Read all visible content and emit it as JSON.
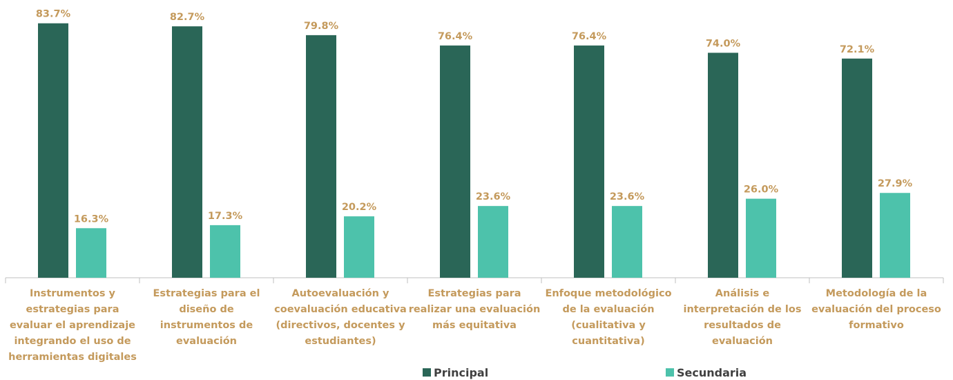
{
  "chart_data": {
    "type": "bar",
    "categories": [
      "Instrumentos y estrategias para evaluar el aprendizaje integrando el uso de herramientas digitales",
      "Estrategias para el diseño de instrumentos de evaluación",
      "Autoevaluación y coevaluación educativa (directivos, docentes y estudiantes)",
      "Estrategias para realizar una evaluación más equitativa",
      "Enfoque metodológico de la evaluación (cualitativa y cuantitativa)",
      "Análisis e interpretación de los resultados de evaluación",
      "Metodología de la evaluación del proceso formativo"
    ],
    "series": [
      {
        "name": "Principal",
        "color": "#2a6657",
        "values": [
          83.7,
          82.7,
          79.8,
          76.4,
          76.4,
          74.0,
          72.1
        ],
        "value_labels": [
          "83.7%",
          "82.7%",
          "79.8%",
          "76.4%",
          "76.4%",
          "74.0%",
          "72.1%"
        ]
      },
      {
        "name": "Secundaria",
        "color": "#4dc2ab",
        "values": [
          16.3,
          17.3,
          20.2,
          23.6,
          23.6,
          26.0,
          27.9
        ],
        "value_labels": [
          "16.3%",
          "17.3%",
          "20.2%",
          "23.6%",
          "23.6%",
          "26.0%",
          "27.9%"
        ]
      }
    ],
    "ylim": [
      0,
      90
    ],
    "legend": "bottom"
  }
}
